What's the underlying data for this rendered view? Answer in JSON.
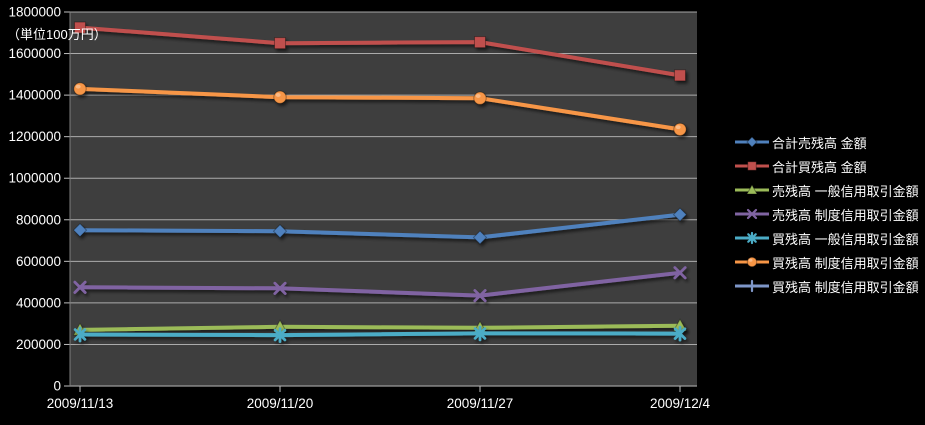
{
  "chart_data": {
    "type": "line",
    "title": "",
    "unit_label": "（単位100万円）",
    "categories": [
      "2009/11/13",
      "2009/11/20",
      "2009/11/27",
      "2009/12/4"
    ],
    "y_axis": {
      "min": 0,
      "max": 1800000,
      "tick_interval": 200000,
      "tick_labels": [
        "0",
        "200000",
        "400000",
        "600000",
        "800000",
        "1000000",
        "1200000",
        "1400000",
        "1600000",
        "1800000"
      ]
    },
    "grid": true,
    "legend_position": "right",
    "series": [
      {
        "name": "合計売残高 金額",
        "color": "#4F81BD",
        "marker": "diamond",
        "values": [
          750000,
          745000,
          715000,
          825000
        ],
        "visible_in_plot": true
      },
      {
        "name": "合計買残高 金額",
        "color": "#C0504D",
        "marker": "square",
        "values": [
          1725000,
          1650000,
          1655000,
          1495000
        ],
        "visible_in_plot": true
      },
      {
        "name": "売残高 一般信用取引金額",
        "color": "#9BBB59",
        "marker": "triangle",
        "values": [
          270000,
          285000,
          280000,
          290000
        ],
        "visible_in_plot": true
      },
      {
        "name": "売残高 制度信用取引金額",
        "color": "#8064A2",
        "marker": "x",
        "values": [
          475000,
          470000,
          435000,
          545000
        ],
        "visible_in_plot": true
      },
      {
        "name": "買残高 一般信用取引金額",
        "color": "#4BACC6",
        "marker": "asterisk",
        "values": [
          248000,
          245000,
          253000,
          252000
        ],
        "visible_in_plot": true
      },
      {
        "name": "買残高 制度信用取引金額",
        "color": "#F79646",
        "marker": "circle",
        "values": [
          1430000,
          1390000,
          1385000,
          1235000
        ],
        "visible_in_plot": true
      },
      {
        "name": "買残高 制度信用取引金額",
        "color": "#7E96C8",
        "marker": "plus",
        "values": [],
        "visible_in_plot": false
      }
    ],
    "colors": {
      "page_background": "#000000",
      "plot_background": "#3E3E3E",
      "gridline": "#BFBFBF",
      "axis_line": "#9C9C9C",
      "text": "#FFFFFF"
    }
  }
}
